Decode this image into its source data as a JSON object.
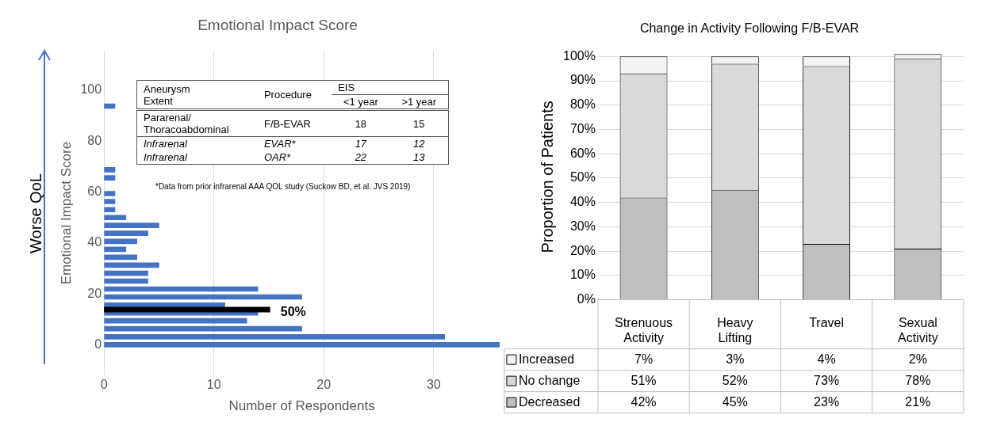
{
  "chart_data": [
    {
      "type": "bar",
      "orientation": "horizontal",
      "title": "Emotional Impact Score",
      "xlabel": "Number of Respondents",
      "ylabel": "Emotional Impact Score",
      "x": [
        0,
        3.1,
        6.3,
        9.4,
        12.5,
        15.6,
        18.8,
        21.9,
        25,
        28.1,
        31.3,
        34.4,
        37.5,
        40.6,
        43.8,
        46.9,
        50,
        53.1,
        56.3,
        59.4,
        65.6,
        68.8,
        93.8
      ],
      "values": [
        36,
        31,
        18,
        13,
        14,
        11,
        18,
        14,
        4,
        4,
        5,
        3,
        2,
        3,
        4,
        5,
        2,
        1,
        1,
        1,
        1,
        1,
        1
      ],
      "color": "#4472c4",
      "xlim": [
        0,
        36
      ],
      "xticks": [
        0,
        10,
        20,
        30
      ],
      "ylim": [
        -1.5,
        105
      ],
      "yticks": [
        0,
        20,
        40,
        60,
        80,
        100
      ],
      "grid": "x",
      "legend": false,
      "ref_lines": [
        {
          "axis": "y",
          "value": 13.8,
          "color": "#000000"
        }
      ],
      "annotations": [
        "Aneurysm Extent",
        "Procedure",
        "EIS",
        "<1 year",
        ">1 year",
        "Pararenal/ Thoracoabdominal",
        "F/B-EVAR",
        "18",
        "15",
        "Infrarenal",
        "EVAR*",
        "17",
        "12",
        "Infrarenal",
        "OAR*",
        "22",
        "13",
        "*Data from prior infrarenal AAA QOL study (Suckow BD, et al. JVS 2019)",
        "Worse QoL",
        {
          "text": "50%",
          "x": 15.2,
          "y": 13.8
        }
      ]
    },
    {
      "type": "bar",
      "stacked": true,
      "title": "Change in Activity Following F/B-EVAR",
      "ylabel": "Proportion of Patients",
      "categories": [
        "Strenuous Activity",
        "Heavy Lifting",
        "Travel",
        "Sexual Activity"
      ],
      "series": [
        {
          "name": "Decreased",
          "color": "#bfbfbf",
          "values": [
            42,
            45,
            23,
            21
          ],
          "value_labels": [
            "42%",
            "45%",
            "23%",
            "21%"
          ]
        },
        {
          "name": "No change",
          "color": "#d9d9d9",
          "values": [
            51,
            52,
            73,
            78
          ],
          "value_labels": [
            "51%",
            "52%",
            "73%",
            "78%"
          ]
        },
        {
          "name": "Increased",
          "color": "#f2f2f2",
          "values": [
            7,
            3,
            4,
            2
          ],
          "value_labels": [
            "7%",
            "3%",
            "4%",
            "2%"
          ]
        }
      ],
      "ylim": [
        0,
        101
      ],
      "yticks": [
        {
          "value": 0,
          "label": "0%"
        },
        {
          "value": 10,
          "label": "10%"
        },
        {
          "value": 20,
          "label": "20%"
        },
        {
          "value": 30,
          "label": "30%"
        },
        {
          "value": 40,
          "label": "40%"
        },
        {
          "value": 50,
          "label": "50%"
        },
        {
          "value": 60,
          "label": "60%"
        },
        {
          "value": 70,
          "label": "70%"
        },
        {
          "value": 80,
          "label": "80%"
        },
        {
          "value": 90,
          "label": "90%"
        },
        {
          "value": 100,
          "label": "100%"
        }
      ],
      "grid": "y",
      "legend": "bottom"
    }
  ]
}
